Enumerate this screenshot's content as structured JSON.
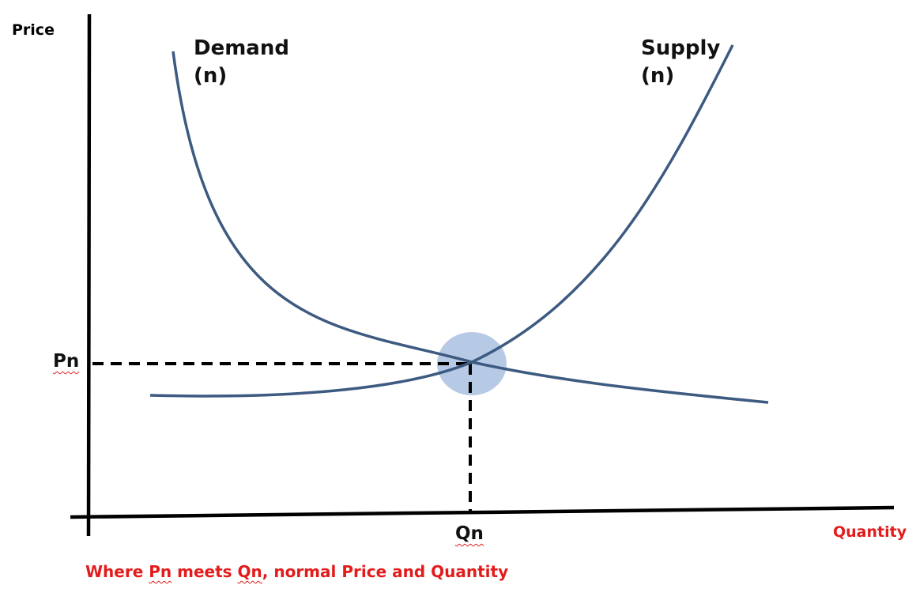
{
  "axes": {
    "y_title": "Price",
    "x_title": "Quantity"
  },
  "curves": {
    "demand": {
      "line1": "Demand",
      "line2": "(n)"
    },
    "supply": {
      "line1": "Supply",
      "line2": "(n)"
    }
  },
  "equilibrium": {
    "price_label": "Pn",
    "quantity_label": "Qn"
  },
  "footnote": {
    "part1": "Where ",
    "pn": "Pn",
    "part2": " meets ",
    "qn": "Qn",
    "part3": ", normal Price and Quantity"
  },
  "colors": {
    "curve": "#3d5a80",
    "axis": "#000000",
    "highlight": "#aac1e0",
    "note": "#e31b1b"
  }
}
